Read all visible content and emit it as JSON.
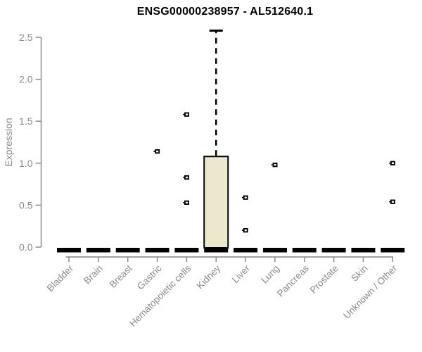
{
  "title": "ENSG00000238957 - AL512640.1",
  "chart_data": {
    "type": "boxplot",
    "title": "ENSG00000238957 - AL512640.1",
    "xlabel": "",
    "ylabel": "Expression",
    "ylim": [
      0,
      2.6
    ],
    "yticks": [
      0,
      0.5,
      1,
      1.5,
      2,
      2.5
    ],
    "grid": false,
    "legend": null,
    "categories": [
      "Bladder",
      "Brain",
      "Breast",
      "Gastric",
      "Hematopoietic cells",
      "Kidney",
      "Liver",
      "Lung",
      "Pancreas",
      "Prostate",
      "Skin",
      "Unknown / Other"
    ],
    "boxes": [
      {
        "category": "Bladder",
        "min": 0,
        "q1": 0,
        "median": 0,
        "q3": 0,
        "max": 0,
        "outliers": []
      },
      {
        "category": "Brain",
        "min": 0,
        "q1": 0,
        "median": 0,
        "q3": 0,
        "max": 0,
        "outliers": []
      },
      {
        "category": "Breast",
        "min": 0,
        "q1": 0,
        "median": 0,
        "q3": 0,
        "max": 0,
        "outliers": []
      },
      {
        "category": "Gastric",
        "min": 0,
        "q1": 0,
        "median": 0,
        "q3": 0,
        "max": 0,
        "outliers": [
          1.14
        ]
      },
      {
        "category": "Hematopoietic cells",
        "min": 0,
        "q1": 0,
        "median": 0,
        "q3": 0,
        "max": 0,
        "outliers": [
          1.58,
          0.83,
          0.53
        ]
      },
      {
        "category": "Kidney",
        "min": 0,
        "q1": 0,
        "median": 0,
        "q3": 1.08,
        "max": 2.58,
        "outliers": []
      },
      {
        "category": "Liver",
        "min": 0,
        "q1": 0,
        "median": 0,
        "q3": 0,
        "max": 0,
        "outliers": [
          0.59,
          0.2
        ]
      },
      {
        "category": "Lung",
        "min": 0,
        "q1": 0,
        "median": 0,
        "q3": 0,
        "max": 0,
        "outliers": [
          0.98
        ]
      },
      {
        "category": "Pancreas",
        "min": 0,
        "q1": 0,
        "median": 0,
        "q3": 0,
        "max": 0,
        "outliers": []
      },
      {
        "category": "Prostate",
        "min": 0,
        "q1": 0,
        "median": 0,
        "q3": 0,
        "max": 0,
        "outliers": []
      },
      {
        "category": "Skin",
        "min": 0,
        "q1": 0,
        "median": 0,
        "q3": 0,
        "max": 0,
        "outliers": []
      },
      {
        "category": "Unknown / Other",
        "min": 0,
        "q1": 0,
        "median": 0,
        "q3": 0,
        "max": 0,
        "outliers": [
          1.0,
          0.54
        ]
      }
    ],
    "colors": {
      "box_fill": "#ece8cd",
      "box_border": "#000000",
      "median": "#000000",
      "whisker": "#000000",
      "outlier": "#000000",
      "axis_line": "#848484",
      "tick_label": "#8a8a8a",
      "title": "#000000",
      "background": "#ffffff"
    }
  }
}
